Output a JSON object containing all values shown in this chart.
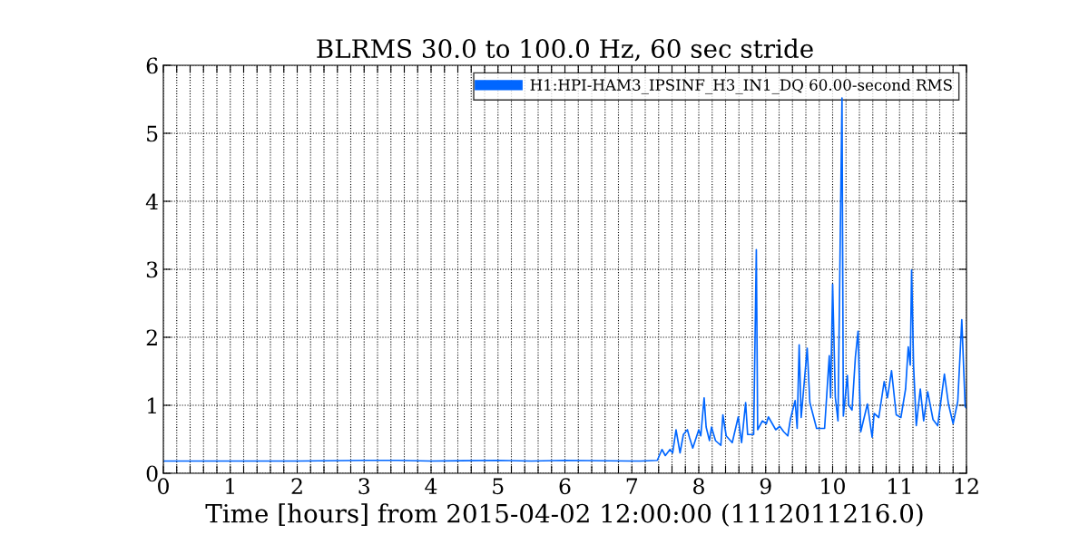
{
  "chart_data": {
    "type": "line",
    "title": "BLRMS 30.0 to 100.0 Hz, 60 sec stride",
    "xlabel": "Time [hours] from 2015-04-02 12:00:00 (1112011216.0)",
    "x": [
      0,
      1,
      2,
      3,
      3.5,
      4,
      5,
      5.5,
      6,
      7,
      7.13,
      7.38,
      7.45,
      7.5,
      7.57,
      7.61,
      7.66,
      7.72,
      7.77,
      7.83,
      7.86,
      7.91,
      8.0,
      8.03,
      8.08,
      8.11,
      8.16,
      8.19,
      8.25,
      8.33,
      8.36,
      8.41,
      8.5,
      8.59,
      8.62,
      8.64,
      8.7,
      8.73,
      8.82,
      8.86,
      8.88,
      8.95,
      9.01,
      9.04,
      9.15,
      9.21,
      9.27,
      9.33,
      9.37,
      9.44,
      9.47,
      9.5,
      9.53,
      9.62,
      9.66,
      9.76,
      9.88,
      9.95,
      9.97,
      10.0,
      10.04,
      10.08,
      10.14,
      10.16,
      10.22,
      10.24,
      10.29,
      10.34,
      10.38,
      10.42,
      10.52,
      10.59,
      10.62,
      10.69,
      10.77,
      10.82,
      10.88,
      10.95,
      11.02,
      11.09,
      11.13,
      11.16,
      11.18,
      11.21,
      11.25,
      11.31,
      11.36,
      11.42,
      11.5,
      11.57,
      11.67,
      11.73,
      11.8,
      11.87,
      11.93,
      11.98,
      12.0
    ],
    "series": [
      {
        "name": "H1:HPI-HAM3_IPSINF_H3_IN1_DQ 60.00-second RMS",
        "color": "#0066ff",
        "values": [
          0.18,
          0.18,
          0.18,
          0.19,
          0.19,
          0.18,
          0.19,
          0.18,
          0.19,
          0.18,
          0.18,
          0.19,
          0.35,
          0.26,
          0.35,
          0.3,
          0.64,
          0.3,
          0.57,
          0.64,
          0.53,
          0.37,
          0.64,
          0.55,
          1.11,
          0.68,
          0.48,
          0.68,
          0.48,
          0.41,
          0.86,
          0.55,
          0.45,
          0.83,
          0.59,
          0.45,
          1.04,
          0.57,
          0.57,
          3.29,
          0.64,
          0.77,
          0.73,
          0.83,
          0.64,
          0.69,
          0.61,
          0.55,
          0.8,
          1.07,
          0.66,
          1.89,
          0.82,
          1.84,
          1.04,
          0.66,
          0.66,
          1.73,
          1.11,
          2.78,
          1.12,
          0.77,
          5.52,
          0.84,
          1.44,
          1.0,
          0.93,
          1.71,
          2.09,
          0.61,
          1.02,
          0.53,
          0.88,
          0.82,
          1.35,
          1.11,
          1.51,
          0.86,
          0.82,
          1.24,
          1.86,
          1.59,
          2.99,
          1.57,
          0.7,
          1.24,
          0.77,
          1.2,
          0.79,
          0.7,
          1.46,
          1.02,
          0.73,
          1.06,
          2.26,
          0.98,
          0.96
        ]
      }
    ],
    "xlim": [
      0,
      12
    ],
    "ylim": [
      0,
      6
    ],
    "xticks": [
      0,
      {
        "value": 0.2,
        "label": null
      },
      {
        "value": 0.4,
        "label": null
      },
      {
        "value": 0.6,
        "label": null
      },
      {
        "value": 0.8,
        "label": null
      },
      1,
      {
        "value": 1.2,
        "label": null
      },
      {
        "value": 1.4,
        "label": null
      },
      {
        "value": 1.6,
        "label": null
      },
      {
        "value": 1.8,
        "label": null
      },
      2,
      {
        "value": 2.2,
        "label": null
      },
      {
        "value": 2.4,
        "label": null
      },
      {
        "value": 2.6,
        "label": null
      },
      {
        "value": 2.8,
        "label": null
      },
      3,
      {
        "value": 3.2,
        "label": null
      },
      {
        "value": 3.4,
        "label": null
      },
      {
        "value": 3.6,
        "label": null
      },
      {
        "value": 3.8,
        "label": null
      },
      4,
      {
        "value": 4.2,
        "label": null
      },
      {
        "value": 4.4,
        "label": null
      },
      {
        "value": 4.6,
        "label": null
      },
      {
        "value": 4.8,
        "label": null
      },
      5,
      {
        "value": 5.2,
        "label": null
      },
      {
        "value": 5.4,
        "label": null
      },
      {
        "value": 5.6,
        "label": null
      },
      {
        "value": 5.8,
        "label": null
      },
      6,
      {
        "value": 6.2,
        "label": null
      },
      {
        "value": 6.4,
        "label": null
      },
      {
        "value": 6.6,
        "label": null
      },
      {
        "value": 6.8,
        "label": null
      },
      7,
      {
        "value": 7.2,
        "label": null
      },
      {
        "value": 7.4,
        "label": null
      },
      {
        "value": 7.6,
        "label": null
      },
      {
        "value": 7.8,
        "label": null
      },
      8,
      {
        "value": 8.2,
        "label": null
      },
      {
        "value": 8.4,
        "label": null
      },
      {
        "value": 8.6,
        "label": null
      },
      {
        "value": 8.8,
        "label": null
      },
      9,
      {
        "value": 9.2,
        "label": null
      },
      {
        "value": 9.4,
        "label": null
      },
      {
        "value": 9.6,
        "label": null
      },
      {
        "value": 9.8,
        "label": null
      },
      10,
      {
        "value": 10.2,
        "label": null
      },
      {
        "value": 10.4,
        "label": null
      },
      {
        "value": 10.6,
        "label": null
      },
      {
        "value": 10.8,
        "label": null
      },
      11,
      {
        "value": 11.2,
        "label": null
      },
      {
        "value": 11.4,
        "label": null
      },
      {
        "value": 11.6,
        "label": null
      },
      {
        "value": 11.8,
        "label": null
      },
      12
    ],
    "yticks": [
      0,
      1,
      2,
      3,
      4,
      5,
      6
    ],
    "grid": true,
    "legend": "top right",
    "marker": "none",
    "line_style": "solid"
  }
}
